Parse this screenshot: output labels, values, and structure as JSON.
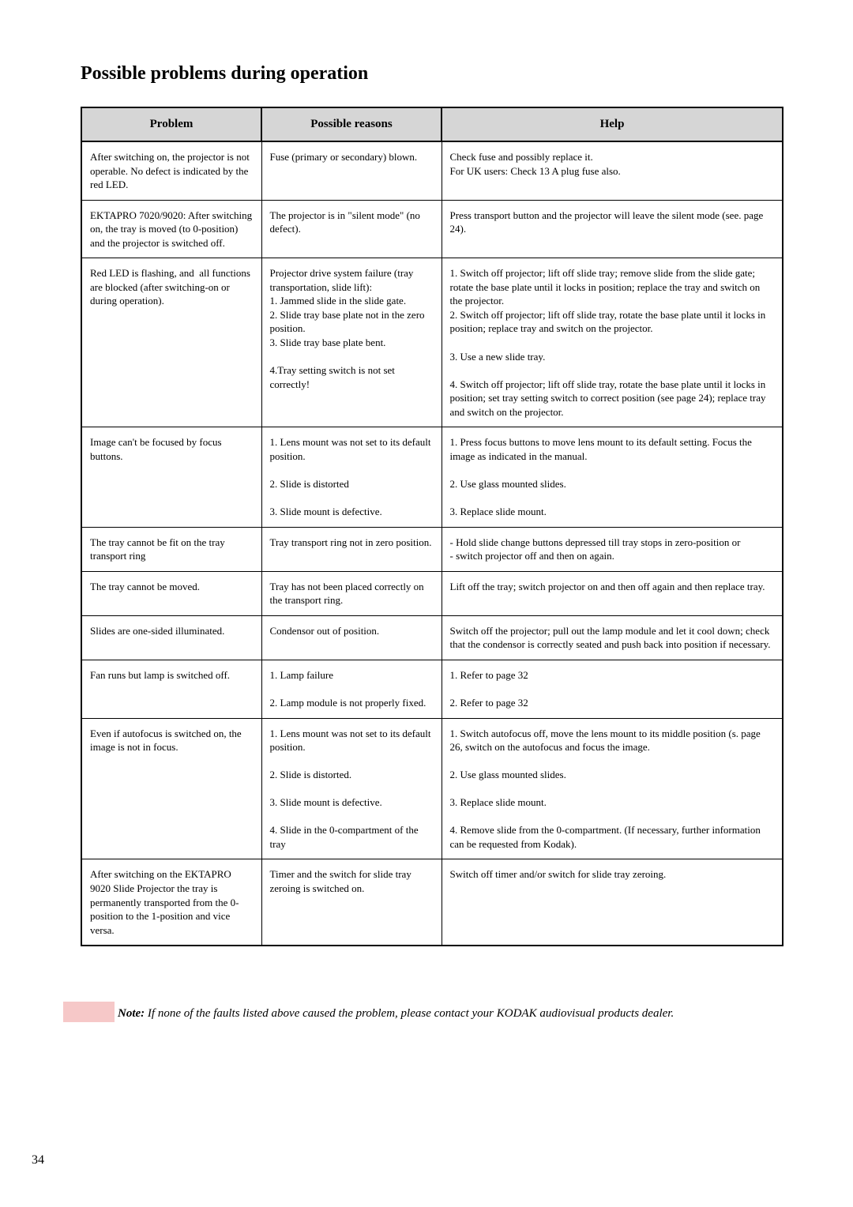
{
  "title": "Possible problems during operation",
  "columns": [
    "Problem",
    "Possible reasons",
    "Help"
  ],
  "rows": [
    {
      "problem": "After switching on, the projector is not operable. No defect is indicated by the red LED.",
      "reason": "Fuse (primary or secondary) blown.",
      "help": "Check fuse and possibly replace it.\nFor UK users: Check 13 A plug fuse also."
    },
    {
      "problem": "EKTAPRO 7020/9020: After switching on, the tray is moved (to 0-position) and the projector is switched off.",
      "reason": "The projector is in \"silent mode\" (no defect).",
      "help": "Press transport button and the projector will leave the silent mode (see. page 24)."
    },
    {
      "problem": "Red LED is flashing, and  all functions are blocked (after switching-on or during operation).",
      "reason": "Projector drive system failure (tray transportation, slide lift):\n1. Jammed slide in the slide gate.\n2. Slide tray base plate not in the zero position.\n3. Slide tray base plate bent.\n\n4.Tray setting switch is not set correctly!",
      "help": "1. Switch off projector; lift off slide tray; remove slide from the slide gate; rotate the base plate until it locks in position; replace the tray and switch on the projector.\n2. Switch off projector; lift off slide tray, rotate the base plate until it locks in position; replace tray and switch on the projector.\n\n3. Use a new slide tray.\n\n4. Switch off projector; lift off slide tray, rotate the base plate until it locks in position; set tray setting switch to correct position (see page 24); replace tray and switch on the projector."
    },
    {
      "problem": "Image can't be focused by focus buttons.",
      "reason": "1. Lens mount was not set to its default position.\n\n2. Slide is distorted\n\n3. Slide mount is defective.",
      "help": "1. Press focus buttons to move lens mount to its default setting. Focus the image as indicated in the manual.\n\n2. Use glass mounted slides.\n\n3. Replace slide mount."
    },
    {
      "problem": "The tray cannot be fit on the tray transport ring",
      "reason": "Tray transport ring not in zero position.",
      "help": "- Hold slide change buttons depressed till tray stops in zero-position or\n- switch projector off and then on again."
    },
    {
      "problem": "The tray cannot be moved.",
      "reason": "Tray has not been placed correctly on the transport ring.",
      "help": "Lift off the tray; switch projector on and then off again and then replace tray."
    },
    {
      "problem": "Slides are one-sided illuminated.",
      "reason": "Condensor out of position.",
      "help": "Switch off the projector; pull out the lamp module and let it cool down; check that the condensor is correctly seated and push back into position if necessary."
    },
    {
      "problem": "Fan runs but lamp is switched off.",
      "reason": "1. Lamp failure\n\n2. Lamp module is not properly fixed.",
      "help": "1. Refer to page 32\n\n2. Refer to page 32"
    },
    {
      "problem": "Even if autofocus is switched on, the image is not in focus.",
      "reason": "1. Lens mount was not set to its default position.\n\n2. Slide is distorted.\n\n3. Slide mount is defective.\n\n4. Slide in the 0-compartment of the tray",
      "help": "1. Switch autofocus off, move the lens mount to its middle position (s. page 26, switch on the autofocus and focus the image.\n\n2. Use glass mounted slides.\n\n3. Replace slide mount.\n\n4. Remove slide from the 0-compartment. (If necessary, further information can be requested from Kodak)."
    },
    {
      "problem": "After switching on the EKTAPRO 9020 Slide Projector the tray is permanently transported from the 0-position to the 1-position and vice versa.",
      "reason": "Timer and the switch for slide tray zeroing is switched on.",
      "help": "Switch off timer and/or switch for slide tray zeroing."
    }
  ],
  "note_label": "Note:",
  "note_text": "  If none of the faults listed above caused the problem, please contact your  KODAK audiovisual products dealer.",
  "page_number": "34",
  "colors": {
    "header_bg": "#d6d6d6",
    "border": "#000000",
    "note_pink": "#f6c8c8",
    "text": "#000000",
    "page_bg": "#ffffff"
  },
  "fontsizes": {
    "title": 24,
    "header": 15,
    "cell": 13,
    "note": 15,
    "pagenum": 16
  }
}
